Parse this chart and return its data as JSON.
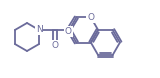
{
  "bg_color": "#ffffff",
  "bond_color": "#6b6b9b",
  "lw": 1.3,
  "fig_width": 1.6,
  "fig_height": 0.78,
  "dpi": 100,
  "xlim": [
    0,
    160
  ],
  "ylim": [
    0,
    78
  ]
}
